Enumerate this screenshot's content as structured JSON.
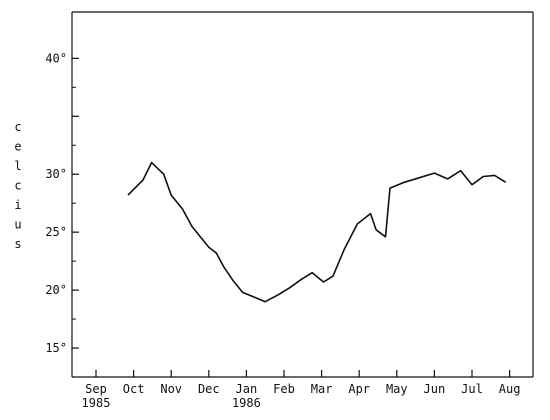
{
  "chart_data": {
    "type": "line",
    "ylabel": "celcius",
    "ylim": [
      12.5,
      44
    ],
    "yticks": [
      {
        "value": 15,
        "label": "15°"
      },
      {
        "value": 20,
        "label": "20°"
      },
      {
        "value": 25,
        "label": "25°"
      },
      {
        "value": 30,
        "label": "30°"
      },
      {
        "value": 35,
        "label": ""
      },
      {
        "value": 40,
        "label": "40°"
      }
    ],
    "xticks": [
      {
        "label": "Sep",
        "sublabel": "1985"
      },
      {
        "label": "Oct",
        "sublabel": ""
      },
      {
        "label": "Nov",
        "sublabel": ""
      },
      {
        "label": "Dec",
        "sublabel": ""
      },
      {
        "label": "Jan",
        "sublabel": "1986"
      },
      {
        "label": "Feb",
        "sublabel": ""
      },
      {
        "label": "Mar",
        "sublabel": ""
      },
      {
        "label": "Apr",
        "sublabel": ""
      },
      {
        "label": "May",
        "sublabel": ""
      },
      {
        "label": "Jun",
        "sublabel": ""
      },
      {
        "label": "Jul",
        "sublabel": ""
      },
      {
        "label": "Aug",
        "sublabel": ""
      }
    ],
    "x_unit": "month index (Sep 1985 = 0)",
    "xlim": [
      -0.3,
      11.6
    ],
    "grid": false,
    "series": [
      {
        "points": [
          [
            0.85,
            28.2
          ],
          [
            1.25,
            29.5
          ],
          [
            1.48,
            31.0
          ],
          [
            1.8,
            30.0
          ],
          [
            2.0,
            28.2
          ],
          [
            2.3,
            27.0
          ],
          [
            2.55,
            25.5
          ],
          [
            2.8,
            24.5
          ],
          [
            3.0,
            23.7
          ],
          [
            3.2,
            23.2
          ],
          [
            3.4,
            22.0
          ],
          [
            3.65,
            20.8
          ],
          [
            3.9,
            19.8
          ],
          [
            4.2,
            19.4
          ],
          [
            4.5,
            19.0
          ],
          [
            4.85,
            19.6
          ],
          [
            5.15,
            20.2
          ],
          [
            5.45,
            20.9
          ],
          [
            5.75,
            21.5
          ],
          [
            6.05,
            20.7
          ],
          [
            6.3,
            21.2
          ],
          [
            6.6,
            23.5
          ],
          [
            6.95,
            25.7
          ],
          [
            7.3,
            26.6
          ],
          [
            7.45,
            25.2
          ],
          [
            7.7,
            24.6
          ],
          [
            7.82,
            28.8
          ],
          [
            8.2,
            29.3
          ],
          [
            8.6,
            29.7
          ],
          [
            9.0,
            30.1
          ],
          [
            9.35,
            29.6
          ],
          [
            9.7,
            30.3
          ],
          [
            10.0,
            29.1
          ],
          [
            10.3,
            29.8
          ],
          [
            10.6,
            29.9
          ],
          [
            10.9,
            29.3
          ]
        ]
      }
    ]
  }
}
